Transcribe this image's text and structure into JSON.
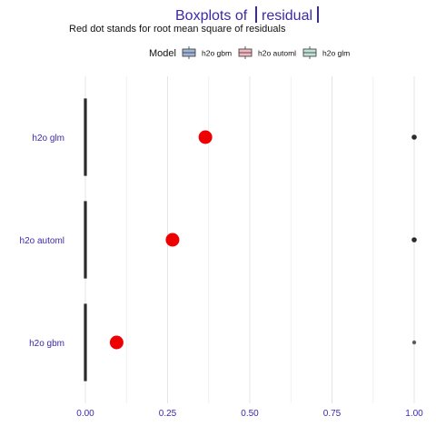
{
  "chart_data": {
    "type": "boxplot",
    "orientation": "horizontal",
    "title": {
      "prefix": "Boxplots of",
      "highlight": "residual"
    },
    "subtitle": "Red dot stands for root mean square of residuals",
    "legend": {
      "title": "Model",
      "position": "top",
      "entries": [
        {
          "label": "h2o gbm",
          "fill": "#9fb5d8"
        },
        {
          "label": "h2o automl",
          "fill": "#f2b7c0"
        },
        {
          "label": "h2o glm",
          "fill": "#bfe3d6"
        }
      ]
    },
    "categories": [
      "h2o glm",
      "h2o automl",
      "h2o gbm"
    ],
    "xlim": [
      0,
      1
    ],
    "x_ticks": [
      {
        "value": 0.0,
        "label": "0.00"
      },
      {
        "value": 0.25,
        "label": "0.25"
      },
      {
        "value": 0.5,
        "label": "0.50"
      },
      {
        "value": 0.75,
        "label": "0.75"
      },
      {
        "value": 1.0,
        "label": "1.00"
      }
    ],
    "x_minor_gridlines": [
      0.125,
      0.375,
      0.625,
      0.875
    ],
    "grid": true,
    "series": [
      {
        "model": "h2o glm",
        "box_min": 0.0,
        "box_max": 0.0,
        "rmse": 0.365,
        "outlier": 1.0
      },
      {
        "model": "h2o automl",
        "box_min": 0.0,
        "box_max": 0.0,
        "rmse": 0.265,
        "outlier": 1.0
      },
      {
        "model": "h2o gbm",
        "box_min": 0.0,
        "box_max": 0.0,
        "rmse": 0.095,
        "outlier": 1.0
      }
    ],
    "colors": {
      "title": "#3b2aa8",
      "tick_label": "#3b2aa8",
      "rmse_dot": "#ee0000",
      "outlier": "#2b2b2b",
      "box_line": "#2b2b2b",
      "grid": "#e4e4e4",
      "text": "#111111"
    }
  }
}
